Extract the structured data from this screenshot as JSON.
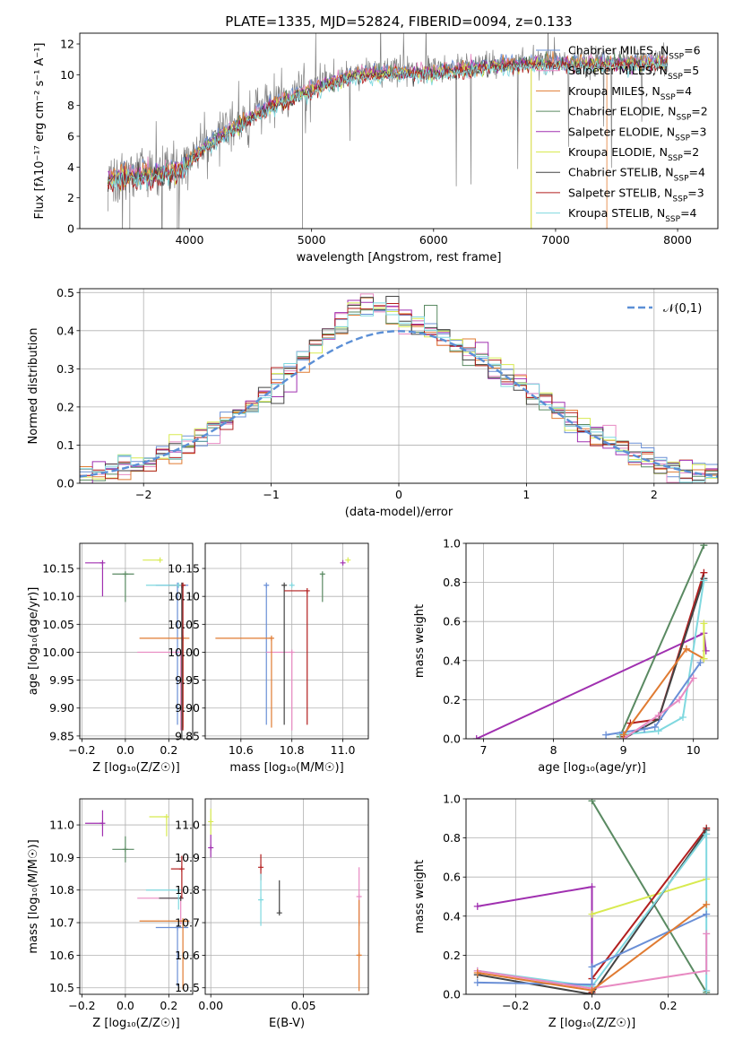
{
  "title": "PLATE=1335, MJD=52824, FIBERID=0094, z=0.133",
  "models": [
    {
      "key": "chabrier-miles",
      "label": "Chabrier MILES, N",
      "nssp": "6",
      "color": "#6a8fd6"
    },
    {
      "key": "salpeter-miles",
      "label": "Salpeter MILES, N",
      "nssp": "5",
      "color": "#e88ac2"
    },
    {
      "key": "kroupa-miles",
      "label": "Kroupa MILES, N",
      "nssp": "4",
      "color": "#e07b32"
    },
    {
      "key": "chabrier-elodie",
      "label": "Chabrier ELODIE, N",
      "nssp": "2",
      "color": "#5a8a62"
    },
    {
      "key": "salpeter-elodie",
      "label": "Salpeter ELODIE, N",
      "nssp": "3",
      "color": "#a030b0"
    },
    {
      "key": "kroupa-elodie",
      "label": "Kroupa ELODIE, N",
      "nssp": "2",
      "color": "#d8ea50"
    },
    {
      "key": "chabrier-stelib",
      "label": "Chabrier STELIB, N",
      "nssp": "4",
      "color": "#444444"
    },
    {
      "key": "salpeter-stelib",
      "label": "Salpeter STELIB, N",
      "nssp": "3",
      "color": "#b21f1f"
    },
    {
      "key": "kroupa-stelib",
      "label": "Kroupa STELIB, N",
      "nssp": "4",
      "color": "#7fd8df"
    }
  ],
  "legend_subscript": "SSP",
  "chart_data": [
    {
      "id": "spectrum",
      "type": "line",
      "xlabel": "wavelength [Angstrom, rest frame]",
      "ylabel": "Flux [fλ10⁻¹⁷ erg cm⁻² s⁻¹ A⁻¹]",
      "xlim": [
        3100,
        8330
      ],
      "ylim": [
        0,
        12.7
      ],
      "xticks": [
        4000,
        5000,
        6000,
        7000,
        8000
      ],
      "yticks": [
        0,
        2,
        4,
        6,
        8,
        10,
        12
      ],
      "data_color": "#808080",
      "data_envelope": {
        "x": [
          3330,
          3500,
          3700,
          3900,
          4100,
          4400,
          4700,
          5000,
          5300,
          5600,
          6000,
          6400,
          6800,
          7200,
          7600,
          7920
        ],
        "y": [
          3.3,
          3.6,
          3.6,
          3.9,
          5.4,
          6.9,
          8.3,
          9.2,
          10.1,
          10.3,
          10.3,
          10.7,
          10.9,
          10.9,
          10.9,
          11.0
        ]
      },
      "legend_position": "upper right"
    },
    {
      "id": "residuals",
      "type": "histogram",
      "xlabel": "(data-model)/error",
      "ylabel": "Normed distribution",
      "xlim": [
        -2.5,
        2.5
      ],
      "ylim": [
        0,
        0.51
      ],
      "xticks": [
        -2,
        -1,
        0,
        1,
        2
      ],
      "yticks": [
        0.0,
        0.1,
        0.2,
        0.3,
        0.4,
        0.5
      ],
      "grid": true,
      "reference": {
        "label": "𝒩(0,1)",
        "mean": 0,
        "sigma": 1,
        "color": "#5b8fd6"
      },
      "legend_position": "upper right"
    },
    {
      "id": "age-vs-Z",
      "type": "scatter-errorbar",
      "xlabel": "Z [log₁₀(Z/Z☉)]",
      "ylabel": "age  [log₁₀(age/yr)]",
      "xlim": [
        -0.21,
        0.31
      ],
      "ylim": [
        9.845,
        10.195
      ],
      "xticks": [
        -0.2,
        0.0,
        0.2
      ],
      "yticks": [
        9.85,
        9.9,
        9.95,
        10.0,
        10.05,
        10.1,
        10.15
      ],
      "grid": true,
      "points": [
        {
          "model": "chabrier-miles",
          "x": 0.24,
          "xerr": [
            0.1,
            0.05
          ],
          "y": 10.12,
          "yerr": [
            0.25,
            0.0
          ]
        },
        {
          "model": "salpeter-miles",
          "x": 0.255,
          "xerr": [
            0.2,
            0.0
          ],
          "y": 10.0,
          "yerr": [
            0.14,
            0.0
          ]
        },
        {
          "model": "kroupa-miles",
          "x": 0.265,
          "xerr": [
            0.2,
            0.03
          ],
          "y": 10.025,
          "yerr": [
            0.16,
            0.0
          ]
        },
        {
          "model": "chabrier-elodie",
          "x": 0.0,
          "xerr": [
            0.06,
            0.04
          ],
          "y": 10.14,
          "yerr": [
            0.05,
            0.0
          ]
        },
        {
          "model": "salpeter-elodie",
          "x": -0.105,
          "xerr": [
            0.08,
            0.0
          ],
          "y": 10.16,
          "yerr": [
            0.06,
            0.0
          ]
        },
        {
          "model": "kroupa-elodie",
          "x": 0.16,
          "xerr": [
            0.08,
            0.0
          ],
          "y": 10.165,
          "yerr": [
            0.0,
            0.0
          ]
        },
        {
          "model": "chabrier-stelib",
          "x": 0.26,
          "xerr": [
            0.06,
            0.0
          ],
          "y": 10.12,
          "yerr": [
            0.28,
            0.0
          ]
        },
        {
          "model": "salpeter-stelib",
          "x": 0.265,
          "xerr": [
            0.04,
            0.0
          ],
          "y": 10.12,
          "yerr": [
            0.26,
            0.0
          ]
        },
        {
          "model": "kroupa-stelib",
          "x": 0.245,
          "xerr": [
            0.15,
            0.0
          ],
          "y": 10.12,
          "yerr": [
            0.0,
            0.0
          ]
        }
      ]
    },
    {
      "id": "age-vs-mass",
      "type": "scatter-errorbar",
      "xlabel": "mass [log₁₀(M/M☉)]",
      "ylabel": "",
      "xlim": [
        10.46,
        11.1
      ],
      "ylim": [
        9.845,
        10.195
      ],
      "xticks": [
        10.6,
        10.8,
        11.0
      ],
      "yticks": [
        9.85,
        9.9,
        9.95,
        10.0,
        10.05,
        10.1,
        10.15
      ],
      "grid": true,
      "points": [
        {
          "model": "chabrier-miles",
          "x": 10.7,
          "xerr": [
            0.0,
            0.0
          ],
          "y": 10.12,
          "yerr": [
            0.25,
            0.0
          ]
        },
        {
          "model": "salpeter-miles",
          "x": 10.8,
          "xerr": [
            0.1,
            0.0
          ],
          "y": 10.0,
          "yerr": [
            0.14,
            0.0
          ]
        },
        {
          "model": "kroupa-miles",
          "x": 10.72,
          "xerr": [
            0.22,
            0.0
          ],
          "y": 10.025,
          "yerr": [
            0.16,
            0.0
          ]
        },
        {
          "model": "chabrier-elodie",
          "x": 10.92,
          "xerr": [
            0.0,
            0.0
          ],
          "y": 10.14,
          "yerr": [
            0.05,
            0.0
          ]
        },
        {
          "model": "salpeter-elodie",
          "x": 11.0,
          "xerr": [
            0.0,
            0.0
          ],
          "y": 10.16,
          "yerr": [
            0.0,
            0.0
          ]
        },
        {
          "model": "kroupa-elodie",
          "x": 11.02,
          "xerr": [
            0.0,
            0.0
          ],
          "y": 10.165,
          "yerr": [
            0.0,
            0.0
          ]
        },
        {
          "model": "chabrier-stelib",
          "x": 10.77,
          "xerr": [
            0.0,
            0.0
          ],
          "y": 10.12,
          "yerr": [
            0.25,
            0.0
          ]
        },
        {
          "model": "salpeter-stelib",
          "x": 10.86,
          "xerr": [
            0.09,
            0.0
          ],
          "y": 10.11,
          "yerr": [
            0.24,
            0.0
          ]
        },
        {
          "model": "kroupa-stelib",
          "x": 10.8,
          "xerr": [
            0.0,
            0.0
          ],
          "y": 10.12,
          "yerr": [
            0.0,
            0.0
          ]
        }
      ]
    },
    {
      "id": "massweight-vs-age",
      "type": "line",
      "xlabel": "age  [log₁₀(age/yr)]",
      "ylabel": "mass weight",
      "xlim": [
        6.75,
        10.35
      ],
      "ylim": [
        0,
        1.0
      ],
      "xticks": [
        7,
        8,
        9,
        10
      ],
      "yticks": [
        0.0,
        0.2,
        0.4,
        0.6,
        0.8,
        1.0
      ],
      "grid": true,
      "series": [
        {
          "model": "salpeter-elodie",
          "x": [
            6.9,
            10.15,
            10.18
          ],
          "y": [
            0.0,
            0.54,
            0.45
          ]
        },
        {
          "model": "chabrier-elodie",
          "x": [
            8.95,
            10.15
          ],
          "y": [
            0.01,
            0.99
          ]
        },
        {
          "model": "salpeter-stelib",
          "x": [
            9.0,
            9.1,
            9.5,
            10.15
          ],
          "y": [
            0.01,
            0.08,
            0.1,
            0.85
          ]
        },
        {
          "model": "chabrier-stelib",
          "x": [
            9.0,
            9.5,
            10.15
          ],
          "y": [
            0.0,
            0.1,
            0.82
          ]
        },
        {
          "model": "kroupa-stelib",
          "x": [
            8.95,
            9.5,
            9.85,
            10.15
          ],
          "y": [
            0.02,
            0.04,
            0.11,
            0.81
          ]
        },
        {
          "model": "chabrier-miles",
          "x": [
            8.75,
            9.3,
            9.45,
            10.1
          ],
          "y": [
            0.02,
            0.05,
            0.06,
            0.39
          ]
        },
        {
          "model": "salpeter-miles",
          "x": [
            9.0,
            9.5,
            9.8,
            10.0
          ],
          "y": [
            0.0,
            0.12,
            0.2,
            0.31
          ]
        },
        {
          "model": "kroupa-miles",
          "x": [
            9.0,
            9.9,
            10.15
          ],
          "y": [
            0.02,
            0.46,
            0.41
          ]
        },
        {
          "model": "kroupa-elodie",
          "x": [
            10.15,
            10.15
          ],
          "y": [
            0.41,
            0.59
          ]
        }
      ]
    },
    {
      "id": "mass-vs-Z",
      "type": "scatter-errorbar",
      "xlabel": "Z [log₁₀(Z/Z☉)]",
      "ylabel": "mass [log₁₀(M/M☉)]",
      "xlim": [
        -0.21,
        0.31
      ],
      "ylim": [
        10.48,
        11.08
      ],
      "xticks": [
        -0.2,
        0.0,
        0.2
      ],
      "yticks": [
        10.5,
        10.6,
        10.7,
        10.8,
        10.9,
        11.0
      ],
      "grid": true,
      "points": [
        {
          "model": "chabrier-miles",
          "x": 0.24,
          "xerr": [
            0.1,
            0.05
          ],
          "y": 10.685,
          "yerr": [
            0.18,
            0.0
          ]
        },
        {
          "model": "salpeter-miles",
          "x": 0.255,
          "xerr": [
            0.2,
            0.0
          ],
          "y": 10.775,
          "yerr": [
            0.08,
            0.0
          ]
        },
        {
          "model": "kroupa-miles",
          "x": 0.265,
          "xerr": [
            0.2,
            0.03
          ],
          "y": 10.705,
          "yerr": [
            0.21,
            0.0
          ]
        },
        {
          "model": "chabrier-elodie",
          "x": 0.0,
          "xerr": [
            0.06,
            0.04
          ],
          "y": 10.925,
          "yerr": [
            0.04,
            0.04
          ]
        },
        {
          "model": "salpeter-elodie",
          "x": -0.105,
          "xerr": [
            0.08,
            0.0
          ],
          "y": 11.005,
          "yerr": [
            0.04,
            0.04
          ]
        },
        {
          "model": "kroupa-elodie",
          "x": 0.19,
          "xerr": [
            0.08,
            0.0
          ],
          "y": 11.025,
          "yerr": [
            0.06,
            0.0
          ]
        },
        {
          "model": "chabrier-stelib",
          "x": 0.255,
          "xerr": [
            0.1,
            0.0
          ],
          "y": 10.775,
          "yerr": [
            0.0,
            0.0
          ]
        },
        {
          "model": "salpeter-stelib",
          "x": 0.26,
          "xerr": [
            0.05,
            0.0
          ],
          "y": 10.865,
          "yerr": [
            0.09,
            0.04
          ]
        },
        {
          "model": "kroupa-stelib",
          "x": 0.245,
          "xerr": [
            0.15,
            0.0
          ],
          "y": 10.8,
          "yerr": [
            0.06,
            0.0
          ]
        }
      ]
    },
    {
      "id": "mass-vs-ebv",
      "type": "scatter-errorbar",
      "xlabel": "E(B-V)",
      "ylabel": "",
      "xlim": [
        -0.003,
        0.085
      ],
      "ylim": [
        10.48,
        11.08
      ],
      "xticks": [
        0.0,
        0.05
      ],
      "yticks": [
        10.5,
        10.6,
        10.7,
        10.8,
        10.9,
        11.0
      ],
      "grid": true,
      "points": [
        {
          "model": "kroupa-elodie",
          "x": 0.0,
          "xerr": [
            0,
            0
          ],
          "y": 11.01,
          "yerr": [
            0.04,
            0.04
          ]
        },
        {
          "model": "salpeter-elodie",
          "x": 0.0,
          "xerr": [
            0,
            0
          ],
          "y": 10.93,
          "yerr": [
            0.03,
            0.04
          ]
        },
        {
          "model": "salpeter-stelib",
          "x": 0.027,
          "xerr": [
            0,
            0
          ],
          "y": 10.87,
          "yerr": [
            0.04,
            0.04
          ]
        },
        {
          "model": "kroupa-stelib",
          "x": 0.027,
          "xerr": [
            0,
            0
          ],
          "y": 10.77,
          "yerr": [
            0.08,
            0.08
          ]
        },
        {
          "model": "chabrier-stelib",
          "x": 0.037,
          "xerr": [
            0,
            0
          ],
          "y": 10.73,
          "yerr": [
            0.0,
            0.1
          ]
        },
        {
          "model": "salpeter-miles",
          "x": 0.08,
          "xerr": [
            0,
            0
          ],
          "y": 10.78,
          "yerr": [
            0.09,
            0.09
          ]
        },
        {
          "model": "kroupa-miles",
          "x": 0.08,
          "xerr": [
            0,
            0
          ],
          "y": 10.6,
          "yerr": [
            0.11,
            0.17
          ]
        }
      ]
    },
    {
      "id": "massweight-vs-Z",
      "type": "line",
      "xlabel": "Z [log₁₀(Z/Z☉)]",
      "ylabel": "mass weight",
      "xlim": [
        -0.33,
        0.33
      ],
      "ylim": [
        0,
        1.0
      ],
      "xticks": [
        -0.2,
        0.0,
        0.2
      ],
      "yticks": [
        0.0,
        0.2,
        0.4,
        0.6,
        0.8,
        1.0
      ],
      "grid": true,
      "series": [
        {
          "model": "chabrier-elodie",
          "x": [
            0.0,
            0.3
          ],
          "y": [
            0.99,
            0.01
          ]
        },
        {
          "model": "salpeter-elodie",
          "x": [
            -0.3,
            0.0,
            0.0
          ],
          "y": [
            0.45,
            0.55,
            0.0
          ]
        },
        {
          "model": "kroupa-elodie",
          "x": [
            0.0,
            0.3
          ],
          "y": [
            0.41,
            0.59
          ]
        },
        {
          "model": "salpeter-stelib",
          "x": [
            0.0,
            0.0,
            0.3
          ],
          "y": [
            0.01,
            0.08,
            0.85
          ]
        },
        {
          "model": "chabrier-stelib",
          "x": [
            -0.3,
            0.0,
            0.3
          ],
          "y": [
            0.1,
            0.0,
            0.84
          ]
        },
        {
          "model": "kroupa-stelib",
          "x": [
            -0.3,
            0.0,
            0.3,
            0.3
          ],
          "y": [
            0.12,
            0.04,
            0.82,
            0.02
          ]
        },
        {
          "model": "chabrier-miles",
          "x": [
            -0.3,
            0.0,
            0.0,
            0.3
          ],
          "y": [
            0.06,
            0.05,
            0.14,
            0.41
          ]
        },
        {
          "model": "salpeter-miles",
          "x": [
            -0.3,
            0.0,
            0.3,
            0.3
          ],
          "y": [
            0.12,
            0.03,
            0.12,
            0.31
          ]
        },
        {
          "model": "kroupa-miles",
          "x": [
            -0.3,
            0.0,
            0.3
          ],
          "y": [
            0.11,
            0.02,
            0.46
          ]
        }
      ]
    }
  ]
}
